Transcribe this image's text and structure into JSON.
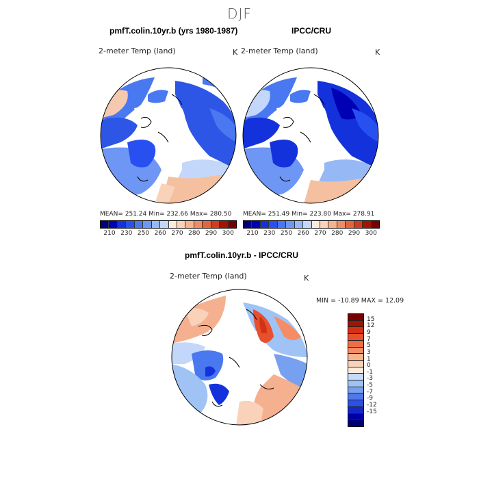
{
  "title": "DJF",
  "panels": {
    "model_title": "pmfT.colin.10yr.b (yrs 1980-1987)",
    "obs_title": "IPCC/CRU",
    "diff_title": "pmfT.colin.10yr.b - IPCC/CRU",
    "variable_label": "2-meter Temp (land)",
    "unit": "K"
  },
  "stats": {
    "model": "MEAN= 251.24   Min= 232.66   Max= 280.50",
    "obs": "MEAN= 251.49   Min= 223.80   Max= 278.91",
    "diff": "MIN = -10.89  MAX =  12.09"
  },
  "abs_colorbar": {
    "colors": [
      "#00007f",
      "#0000b4",
      "#1432dc",
      "#2850f0",
      "#4678f0",
      "#6e96f5",
      "#96b9f5",
      "#c3d7fa",
      "#faebdc",
      "#fad2b9",
      "#f5b48c",
      "#f08c64",
      "#e6643c",
      "#d23c1e",
      "#a01400",
      "#780000"
    ],
    "ticks": [
      "210",
      "230",
      "250",
      "260",
      "270",
      "280",
      "290",
      "300"
    ]
  },
  "diff_colorbar": {
    "colors": [
      "#780000",
      "#a01400",
      "#d23214",
      "#e6502d",
      "#f06e46",
      "#f58c64",
      "#fab48c",
      "#fad2b9",
      "#fcebdc",
      "#c8dcfa",
      "#a0c3f5",
      "#78a0f0",
      "#5078eb",
      "#2d50e6",
      "#1428c8",
      "#0000a0",
      "#000078"
    ],
    "ticks": [
      "15",
      "12",
      "9",
      "7",
      "5",
      "3",
      "1",
      "0",
      "-1",
      "-3",
      "-5",
      "-7",
      "-9",
      "-12",
      "-15"
    ]
  }
}
